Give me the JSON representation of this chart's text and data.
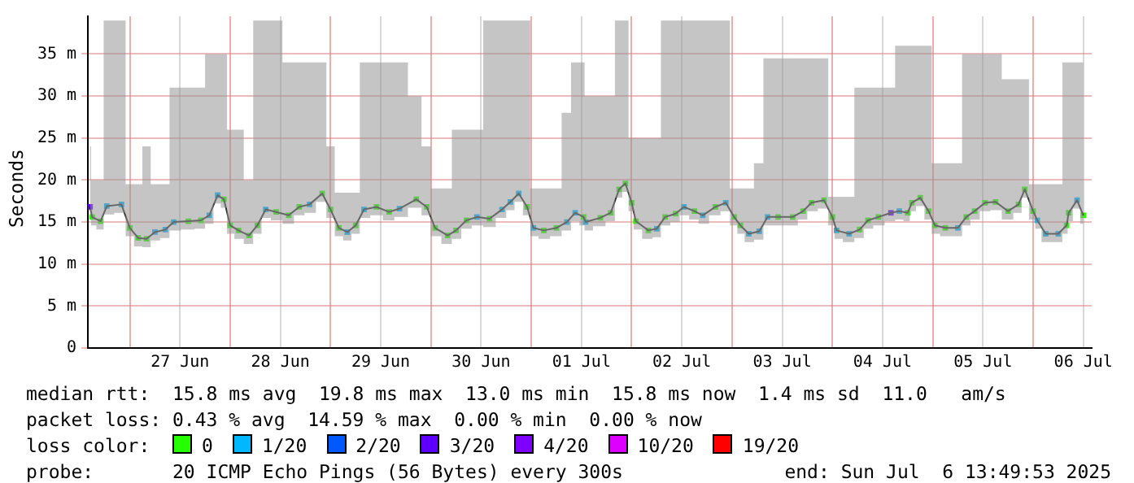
{
  "chart_data": {
    "type": "line",
    "ylabel": "Seconds",
    "legend_title": "loss color:",
    "legend": "bottom",
    "grid": true,
    "marker": "square",
    "line_style": "solid",
    "xlim": [
      "2025-06-26T14:00",
      "2025-07-06T14:00"
    ],
    "xticks": [
      {
        "value": "2025-06-27T00:00",
        "label": null
      },
      {
        "value": "2025-06-27T12:00",
        "label": "27 Jun"
      },
      {
        "value": "2025-06-28T00:00",
        "label": null
      },
      {
        "value": "2025-06-28T12:00",
        "label": "28 Jun"
      },
      {
        "value": "2025-06-29T00:00",
        "label": null
      },
      {
        "value": "2025-06-29T12:00",
        "label": "29 Jun"
      },
      {
        "value": "2025-06-30T00:00",
        "label": null
      },
      {
        "value": "2025-06-30T12:00",
        "label": "30 Jun"
      },
      {
        "value": "2025-07-01T00:00",
        "label": null
      },
      {
        "value": "2025-07-01T12:00",
        "label": "01 Jul"
      },
      {
        "value": "2025-07-02T00:00",
        "label": null
      },
      {
        "value": "2025-07-02T12:00",
        "label": "02 Jul"
      },
      {
        "value": "2025-07-03T00:00",
        "label": null
      },
      {
        "value": "2025-07-03T12:00",
        "label": "03 Jul"
      },
      {
        "value": "2025-07-04T00:00",
        "label": null
      },
      {
        "value": "2025-07-04T12:00",
        "label": "04 Jul"
      },
      {
        "value": "2025-07-05T00:00",
        "label": null
      },
      {
        "value": "2025-07-05T12:00",
        "label": "05 Jul"
      },
      {
        "value": "2025-07-06T00:00",
        "label": null
      },
      {
        "value": "2025-07-06T12:00",
        "label": "06 Jul"
      }
    ],
    "ylim": [
      0,
      39.5
    ],
    "yticks": [
      0,
      {
        "value": 5,
        "label": "5 m"
      },
      {
        "value": 10,
        "label": "10 m"
      },
      {
        "value": 15,
        "label": "15 m"
      },
      {
        "value": 20,
        "label": "20 m"
      },
      {
        "value": 25,
        "label": "25 m"
      },
      {
        "value": 30,
        "label": "30 m"
      },
      {
        "value": 35,
        "label": "35 m"
      }
    ],
    "x": [
      "2025-06-26T14:30",
      "2025-06-26T15:00",
      "2025-06-26T17:00",
      "2025-06-26T18:30",
      "2025-06-26T22:00",
      "2025-06-27T00:00",
      "2025-06-27T02:00",
      "2025-06-27T04:00",
      "2025-06-27T06:00",
      "2025-06-27T08:30",
      "2025-06-27T10:30",
      "2025-06-27T14:00",
      "2025-06-27T17:00",
      "2025-06-27T19:00",
      "2025-06-27T21:00",
      "2025-06-27T22:30",
      "2025-06-28T00:00",
      "2025-06-28T02:00",
      "2025-06-28T04:30",
      "2025-06-28T06:30",
      "2025-06-28T08:30",
      "2025-06-28T11:00",
      "2025-06-28T14:00",
      "2025-06-28T16:30",
      "2025-06-28T19:00",
      "2025-06-28T22:00",
      "2025-06-29T00:00",
      "2025-06-29T02:00",
      "2025-06-29T04:00",
      "2025-06-29T06:00",
      "2025-06-29T08:00",
      "2025-06-29T11:00",
      "2025-06-29T14:00",
      "2025-06-29T16:30",
      "2025-06-29T20:30",
      "2025-06-29T23:00",
      "2025-06-30T01:00",
      "2025-06-30T04:00",
      "2025-06-30T06:00",
      "2025-06-30T08:30",
      "2025-06-30T11:00",
      "2025-06-30T14:00",
      "2025-06-30T17:00",
      "2025-06-30T19:00",
      "2025-06-30T21:00",
      "2025-06-30T23:00",
      "2025-07-01T00:30",
      "2025-07-01T03:00",
      "2025-07-01T06:00",
      "2025-07-01T08:30",
      "2025-07-01T10:30",
      "2025-07-01T12:30",
      "2025-07-01T13:00",
      "2025-07-01T16:30",
      "2025-07-01T19:00",
      "2025-07-01T21:00",
      "2025-07-01T22:30",
      "2025-07-02T00:00",
      "2025-07-02T01:00",
      "2025-07-02T04:00",
      "2025-07-02T06:00",
      "2025-07-02T08:00",
      "2025-07-02T10:30",
      "2025-07-02T12:30",
      "2025-07-02T15:00",
      "2025-07-02T17:00",
      "2025-07-02T20:00",
      "2025-07-02T22:30",
      "2025-07-03T00:30",
      "2025-07-03T02:00",
      "2025-07-03T04:00",
      "2025-07-03T06:30",
      "2025-07-03T08:30",
      "2025-07-03T11:00",
      "2025-07-03T14:30",
      "2025-07-03T17:00",
      "2025-07-03T19:00",
      "2025-07-03T22:00",
      "2025-07-04T00:00",
      "2025-07-04T01:00",
      "2025-07-04T04:00",
      "2025-07-04T06:30",
      "2025-07-04T08:30",
      "2025-07-04T11:00",
      "2025-07-04T14:00",
      "2025-07-04T16:00",
      "2025-07-04T18:00",
      "2025-07-04T19:00",
      "2025-07-04T21:00",
      "2025-07-04T23:00",
      "2025-07-05T00:30",
      "2025-07-05T03:00",
      "2025-07-05T06:00",
      "2025-07-05T08:00",
      "2025-07-05T10:00",
      "2025-07-05T12:30",
      "2025-07-05T15:00",
      "2025-07-05T18:00",
      "2025-07-05T20:30",
      "2025-07-05T22:00",
      "2025-07-06T00:00",
      "2025-07-06T01:00",
      "2025-07-06T03:00",
      "2025-07-06T06:00",
      "2025-07-06T08:00",
      "2025-07-06T08:30",
      "2025-07-06T10:30",
      "2025-07-06T12:00"
    ],
    "series": [
      {
        "color": "#303030",
        "marker": "none",
        "values": [
          16.8,
          15.6,
          15.1,
          16.9,
          17.1,
          14.3,
          13.1,
          13.0,
          13.8,
          14.1,
          15.0,
          15.1,
          15.2,
          15.8,
          18.2,
          17.7,
          14.6,
          14.0,
          13.4,
          14.6,
          16.5,
          16.2,
          15.8,
          16.8,
          17.1,
          18.4,
          16.5,
          14.3,
          13.8,
          14.6,
          16.5,
          16.8,
          16.2,
          16.6,
          17.7,
          16.8,
          14.3,
          13.4,
          14.0,
          15.2,
          15.6,
          15.4,
          16.5,
          17.4,
          18.4,
          16.8,
          14.3,
          14.0,
          14.3,
          15.0,
          16.1,
          15.6,
          15.0,
          15.5,
          16.1,
          18.9,
          19.6,
          17.3,
          15.1,
          14.0,
          14.2,
          15.6,
          16.0,
          16.8,
          16.3,
          15.8,
          16.8,
          17.3,
          15.6,
          14.6,
          13.6,
          13.9,
          15.6,
          15.6,
          15.6,
          16.3,
          17.3,
          17.6,
          15.6,
          14.0,
          13.6,
          14.1,
          15.2,
          15.6,
          16.1,
          16.3,
          16.1,
          17.3,
          17.9,
          16.3,
          14.6,
          14.3,
          14.3,
          15.6,
          16.3,
          17.3,
          17.4,
          16.3,
          17.1,
          18.9,
          16.3,
          15.2,
          13.6,
          13.6,
          14.6,
          16.1,
          17.6,
          15.8
        ],
        "lower": [
          15.8,
          14.6,
          14.1,
          15.9,
          16.1,
          13.3,
          12.1,
          12.0,
          12.8,
          13.1,
          14.0,
          14.1,
          14.2,
          14.8,
          17.2,
          16.7,
          13.6,
          13.0,
          12.4,
          13.6,
          15.5,
          15.2,
          14.8,
          15.8,
          16.1,
          17.4,
          15.5,
          13.3,
          12.8,
          13.6,
          15.5,
          15.8,
          15.2,
          15.6,
          16.7,
          15.8,
          13.3,
          12.4,
          13.0,
          14.2,
          14.6,
          14.4,
          15.5,
          16.4,
          17.4,
          15.8,
          13.3,
          13.0,
          13.3,
          14.0,
          15.1,
          14.6,
          14.0,
          14.5,
          15.1,
          17.9,
          18.6,
          16.3,
          14.1,
          13.0,
          13.2,
          14.6,
          15.0,
          15.8,
          15.3,
          14.8,
          15.8,
          16.3,
          14.6,
          13.6,
          12.6,
          12.9,
          14.6,
          14.6,
          14.6,
          15.3,
          16.3,
          16.6,
          14.6,
          13.0,
          12.6,
          13.1,
          14.2,
          14.6,
          15.1,
          15.3,
          15.1,
          16.3,
          16.9,
          15.3,
          13.6,
          13.3,
          13.3,
          14.6,
          15.3,
          16.3,
          16.4,
          15.3,
          16.1,
          17.9,
          15.3,
          14.2,
          12.6,
          12.6,
          13.6,
          15.1,
          16.6,
          14.8
        ],
        "upper": [
          24,
          20,
          20,
          39,
          39,
          19.5,
          19.5,
          24,
          19.5,
          19.5,
          31,
          31,
          31,
          35,
          35,
          35,
          26,
          26,
          20,
          39,
          39,
          39,
          34,
          34,
          34,
          34,
          24,
          18.5,
          18.5,
          18.5,
          34,
          34,
          34,
          34,
          30,
          24,
          19,
          19,
          26,
          26,
          26,
          39,
          39,
          39,
          39,
          39,
          19,
          19,
          19,
          28,
          34,
          34,
          30,
          30,
          30,
          39,
          39,
          25,
          25,
          25,
          25,
          39,
          39,
          39,
          39,
          39,
          39,
          39,
          19,
          19,
          19,
          22,
          34.5,
          34.5,
          34.5,
          34.5,
          34.5,
          34.5,
          18,
          18,
          18,
          31,
          31,
          31,
          31,
          36,
          36,
          36,
          36,
          36,
          22,
          22,
          22,
          35,
          35,
          35,
          35,
          32,
          32,
          32,
          19.5,
          19.5,
          19.5,
          19.5,
          34,
          34,
          34,
          34
        ]
      },
      {
        "name": "0",
        "type": "scatter",
        "color": "#26ff00",
        "x": [
          "2025-06-26T15:00",
          "2025-06-26T17:00",
          "2025-06-27T00:00",
          "2025-06-27T02:00",
          "2025-06-27T04:00",
          "2025-06-27T14:00",
          "2025-06-27T17:00",
          "2025-06-27T22:30",
          "2025-06-28T00:00",
          "2025-06-28T02:00",
          "2025-06-28T04:30",
          "2025-06-28T06:30",
          "2025-06-28T11:00",
          "2025-06-28T14:00",
          "2025-06-28T16:30",
          "2025-06-28T22:00",
          "2025-06-29T00:00",
          "2025-06-29T02:00",
          "2025-06-29T06:00",
          "2025-06-29T11:00",
          "2025-06-29T14:00",
          "2025-06-29T20:30",
          "2025-06-29T23:00",
          "2025-06-30T01:00",
          "2025-06-30T04:00",
          "2025-06-30T06:00",
          "2025-06-30T08:30",
          "2025-06-30T14:00",
          "2025-06-30T23:00",
          "2025-07-01T03:00",
          "2025-07-01T06:00",
          "2025-07-01T12:30",
          "2025-07-01T16:30",
          "2025-07-01T19:00",
          "2025-07-01T21:00",
          "2025-07-01T22:30",
          "2025-07-02T00:00",
          "2025-07-02T01:00",
          "2025-07-02T04:00",
          "2025-07-02T08:00",
          "2025-07-02T10:30",
          "2025-07-02T15:00",
          "2025-07-02T20:00",
          "2025-07-03T00:30",
          "2025-07-03T02:00",
          "2025-07-03T11:00",
          "2025-07-03T14:30",
          "2025-07-03T17:00",
          "2025-07-03T19:00",
          "2025-07-03T22:00",
          "2025-07-04T00:00",
          "2025-07-04T06:30",
          "2025-07-04T08:30",
          "2025-07-04T11:00",
          "2025-07-04T18:00",
          "2025-07-04T19:00",
          "2025-07-04T21:00",
          "2025-07-04T23:00",
          "2025-07-05T00:30",
          "2025-07-05T03:00",
          "2025-07-05T08:00",
          "2025-07-05T10:00",
          "2025-07-05T12:30",
          "2025-07-05T15:00",
          "2025-07-05T18:00",
          "2025-07-05T20:30",
          "2025-07-05T22:00",
          "2025-07-06T00:00",
          "2025-07-06T08:00",
          "2025-07-06T08:30",
          "2025-07-06T12:00"
        ],
        "values": [
          15.6,
          15.1,
          14.3,
          13.1,
          13.0,
          15.1,
          15.2,
          17.7,
          14.6,
          14.0,
          13.4,
          14.6,
          16.2,
          15.8,
          16.8,
          18.4,
          16.5,
          14.3,
          14.6,
          16.8,
          16.2,
          17.7,
          16.8,
          14.3,
          13.4,
          14.0,
          15.2,
          15.4,
          16.8,
          14.0,
          14.3,
          15.6,
          15.5,
          16.1,
          18.9,
          19.6,
          17.3,
          15.1,
          14.0,
          15.6,
          16.0,
          16.3,
          16.8,
          15.6,
          14.6,
          15.6,
          15.6,
          16.3,
          17.3,
          17.6,
          15.6,
          14.1,
          15.2,
          15.6,
          16.1,
          17.3,
          17.9,
          16.3,
          14.6,
          14.3,
          15.6,
          16.3,
          17.3,
          17.4,
          16.3,
          17.1,
          18.9,
          16.3,
          14.6,
          16.1,
          15.8
        ]
      },
      {
        "name": "1/20",
        "type": "scatter",
        "color": "#00b8ff",
        "x": [
          "2025-06-26T18:30",
          "2025-06-26T22:00",
          "2025-06-27T06:00",
          "2025-06-27T08:30",
          "2025-06-27T10:30",
          "2025-06-27T19:00",
          "2025-06-27T21:00",
          "2025-06-28T08:30",
          "2025-06-28T19:00",
          "2025-06-29T04:00",
          "2025-06-29T08:00",
          "2025-06-29T16:30",
          "2025-06-30T11:00",
          "2025-06-30T17:00",
          "2025-06-30T19:00",
          "2025-06-30T21:00",
          "2025-07-01T00:30",
          "2025-07-01T08:30",
          "2025-07-01T10:30",
          "2025-07-01T13:00",
          "2025-07-02T06:00",
          "2025-07-02T12:30",
          "2025-07-02T17:00",
          "2025-07-02T22:30",
          "2025-07-03T04:00",
          "2025-07-03T06:30",
          "2025-07-03T08:30",
          "2025-07-04T01:00",
          "2025-07-04T04:00",
          "2025-07-04T16:00",
          "2025-07-05T06:00",
          "2025-07-06T01:00",
          "2025-07-06T03:00",
          "2025-07-06T06:00",
          "2025-07-06T10:30"
        ],
        "values": [
          16.9,
          17.1,
          13.8,
          14.1,
          15.0,
          15.8,
          18.2,
          16.5,
          17.1,
          13.8,
          16.5,
          16.6,
          15.6,
          16.5,
          17.4,
          18.4,
          14.3,
          15.0,
          16.1,
          15.0,
          14.2,
          16.8,
          15.8,
          17.3,
          13.6,
          13.9,
          15.6,
          14.0,
          13.6,
          16.3,
          14.3,
          15.2,
          13.6,
          13.6,
          17.6
        ]
      },
      {
        "name": "2/20",
        "type": "scatter",
        "color": "#0059ff",
        "values": [
          null,
          null,
          null,
          null,
          null,
          null,
          null,
          null,
          null,
          null,
          null,
          null,
          null,
          null,
          null,
          null,
          null,
          null,
          null,
          null,
          null,
          null,
          null,
          null,
          null,
          null,
          null,
          null,
          null,
          null,
          null,
          null,
          null,
          null,
          null,
          null,
          null,
          null,
          null,
          null,
          null,
          null,
          null,
          null,
          null,
          null,
          null,
          null,
          null,
          null,
          null,
          null,
          null,
          null,
          null,
          null,
          null,
          null,
          null,
          null,
          null,
          null,
          null,
          null,
          null,
          null,
          null,
          null,
          null,
          null,
          null,
          null,
          null,
          null,
          null,
          null,
          null,
          null,
          null,
          null,
          null,
          null,
          null,
          null,
          null,
          null,
          null,
          null,
          null,
          null,
          null,
          null,
          null,
          null,
          null,
          null,
          null,
          null,
          null,
          null,
          null,
          null,
          null,
          null,
          null,
          null,
          null,
          null
        ]
      },
      {
        "name": "3/20",
        "type": "scatter",
        "color": "#5e00ff",
        "x": [
          "2025-06-26T14:30",
          "2025-07-04T14:00"
        ],
        "values": [
          16.8,
          16.1
        ]
      },
      {
        "name": "4/20",
        "type": "scatter",
        "color": "#7e00ff",
        "values": [
          null,
          null,
          null,
          null,
          null,
          null,
          null,
          null,
          null,
          null,
          null,
          null,
          null,
          null,
          null,
          null,
          null,
          null,
          null,
          null,
          null,
          null,
          null,
          null,
          null,
          null,
          null,
          null,
          null,
          null,
          null,
          null,
          null,
          null,
          null,
          null,
          null,
          null,
          null,
          null,
          null,
          null,
          null,
          null,
          null,
          null,
          null,
          null,
          null,
          null,
          null,
          null,
          null,
          null,
          null,
          null,
          null,
          null,
          null,
          null,
          null,
          null,
          null,
          null,
          null,
          null,
          null,
          null,
          null,
          null,
          null,
          null,
          null,
          null,
          null,
          null,
          null,
          null,
          null,
          null,
          null,
          null,
          null,
          null,
          null,
          null,
          null,
          null,
          null,
          null,
          null,
          null,
          null,
          null,
          null,
          null,
          null,
          null,
          null,
          null,
          null,
          null,
          null,
          null,
          null,
          null,
          null,
          null
        ]
      },
      {
        "name": "10/20",
        "type": "scatter",
        "color": "#dd00ff",
        "values": [
          null,
          null,
          null,
          null,
          null,
          null,
          null,
          null,
          null,
          null,
          null,
          null,
          null,
          null,
          null,
          null,
          null,
          null,
          null,
          null,
          null,
          null,
          null,
          null,
          null,
          null,
          null,
          null,
          null,
          null,
          null,
          null,
          null,
          null,
          null,
          null,
          null,
          null,
          null,
          null,
          null,
          null,
          null,
          null,
          null,
          null,
          null,
          null,
          null,
          null,
          null,
          null,
          null,
          null,
          null,
          null,
          null,
          null,
          null,
          null,
          null,
          null,
          null,
          null,
          null,
          null,
          null,
          null,
          null,
          null,
          null,
          null,
          null,
          null,
          null,
          null,
          null,
          null,
          null,
          null,
          null,
          null,
          null,
          null,
          null,
          null,
          null,
          null,
          null,
          null,
          null,
          null,
          null,
          null,
          null,
          null,
          null,
          null,
          null,
          null,
          null,
          null,
          null,
          null,
          null,
          null,
          null,
          null
        ]
      },
      {
        "name": "19/20",
        "type": "scatter",
        "color": "#ff0000",
        "values": [
          null,
          null,
          null,
          null,
          null,
          null,
          null,
          null,
          null,
          null,
          null,
          null,
          null,
          null,
          null,
          null,
          null,
          null,
          null,
          null,
          null,
          null,
          null,
          null,
          null,
          null,
          null,
          null,
          null,
          null,
          null,
          null,
          null,
          null,
          null,
          null,
          null,
          null,
          null,
          null,
          null,
          null,
          null,
          null,
          null,
          null,
          null,
          null,
          null,
          null,
          null,
          null,
          null,
          null,
          null,
          null,
          null,
          null,
          null,
          null,
          null,
          null,
          null,
          null,
          null,
          null,
          null,
          null,
          null,
          null,
          null,
          null,
          null,
          null,
          null,
          null,
          null,
          null,
          null,
          null,
          null,
          null,
          null,
          null,
          null,
          null,
          null,
          null,
          null,
          null,
          null,
          null,
          null,
          null,
          null,
          null,
          null,
          null,
          null,
          null,
          null,
          null,
          null,
          null,
          null,
          null,
          null,
          null
        ]
      }
    ],
    "annotations": [
      "median rtt:  15.8 ms avg  19.8 ms max  13.0 ms min  15.8 ms now  1.4 ms sd  11.0   am/s",
      "packet loss: 0.43 % avg  14.59 % max  0.00 % min  0.00 % now",
      "probe:       20 ICMP Echo Pings (56 Bytes) every 300s",
      "end: Sun Jul  6 13:49:53 2025"
    ]
  }
}
